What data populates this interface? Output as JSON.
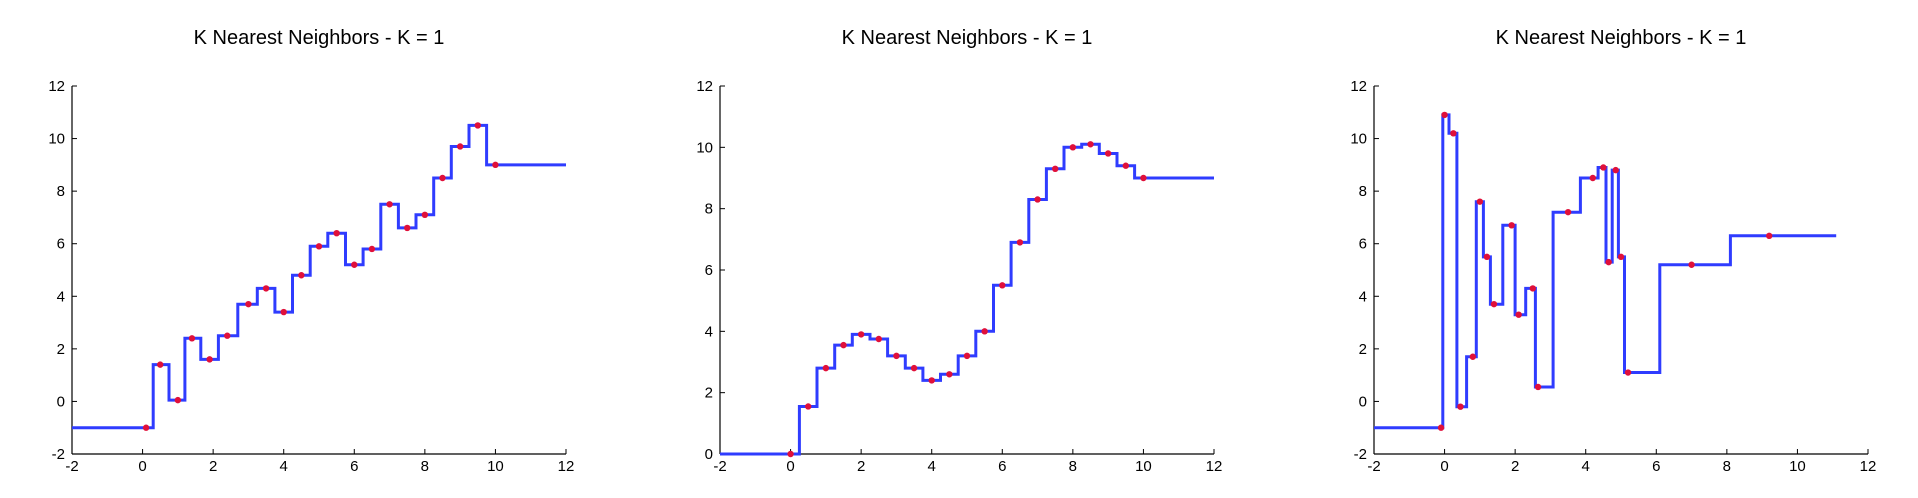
{
  "colors": {
    "line": "#2f3cff",
    "points": "#e0103a",
    "axis": "#000000"
  },
  "chart_data": [
    {
      "type": "line",
      "title": "K Nearest Neighbors - K = 1",
      "xlim": [
        -2,
        12
      ],
      "ylim": [
        -2,
        12
      ],
      "xticks": [
        -2,
        0,
        2,
        4,
        6,
        8,
        10,
        12
      ],
      "yticks": [
        -2,
        0,
        2,
        4,
        6,
        8,
        10,
        12
      ],
      "grid": false,
      "series": [
        {
          "kind": "knn-step",
          "x_range": [
            -2,
            12
          ],
          "x": [
            0.1,
            0.5,
            1.0,
            1.4,
            1.9,
            2.4,
            3.0,
            3.5,
            4.0,
            4.5,
            5.0,
            5.5,
            6.0,
            6.5,
            7.0,
            7.5,
            8.0,
            8.5,
            9.0,
            9.5,
            10.0
          ],
          "y": [
            -1.0,
            1.4,
            0.05,
            2.4,
            1.6,
            2.5,
            3.7,
            4.3,
            3.4,
            4.8,
            5.9,
            6.4,
            5.2,
            5.8,
            7.5,
            6.6,
            7.1,
            8.5,
            9.7,
            10.5,
            9.0
          ]
        }
      ]
    },
    {
      "type": "line",
      "title": "K Nearest Neighbors - K = 1",
      "xlim": [
        -2,
        12
      ],
      "ylim": [
        0,
        12
      ],
      "xticks": [
        -2,
        0,
        2,
        4,
        6,
        8,
        10,
        12
      ],
      "yticks": [
        0,
        2,
        4,
        6,
        8,
        10,
        12
      ],
      "grid": false,
      "series": [
        {
          "kind": "knn-step",
          "x_range": [
            -2,
            12
          ],
          "x": [
            0.0,
            0.5,
            1.0,
            1.5,
            2.0,
            2.5,
            3.0,
            3.5,
            4.0,
            4.5,
            5.0,
            5.5,
            6.0,
            6.5,
            7.0,
            7.5,
            8.0,
            8.5,
            9.0,
            9.5,
            10.0
          ],
          "y": [
            0.0,
            1.55,
            2.8,
            3.55,
            3.9,
            3.75,
            3.2,
            2.8,
            2.4,
            2.6,
            3.2,
            4.0,
            5.5,
            6.9,
            8.3,
            9.3,
            10.0,
            10.1,
            9.8,
            9.4,
            9.0
          ]
        }
      ]
    },
    {
      "type": "line",
      "title": "K Nearest Neighbors - K = 1",
      "xlim": [
        -2,
        12
      ],
      "ylim": [
        -2,
        12
      ],
      "xticks": [
        -2,
        0,
        2,
        4,
        6,
        8,
        10,
        12
      ],
      "yticks": [
        -2,
        0,
        2,
        4,
        6,
        8,
        10,
        12
      ],
      "grid": false,
      "series": [
        {
          "kind": "knn-step",
          "x_range": [
            -2,
            11.1
          ],
          "x": [
            -0.1,
            0.0,
            0.25,
            0.45,
            0.8,
            1.0,
            1.2,
            1.4,
            1.9,
            2.1,
            2.5,
            2.65,
            3.5,
            4.2,
            4.5,
            4.65,
            4.85,
            5.0,
            5.2,
            7.0,
            9.2
          ],
          "y": [
            -1.0,
            10.9,
            10.2,
            -0.2,
            1.7,
            7.6,
            5.5,
            3.7,
            6.7,
            3.3,
            4.3,
            0.55,
            7.2,
            8.5,
            8.9,
            5.3,
            8.8,
            5.5,
            1.1,
            5.2,
            6.3
          ]
        }
      ]
    }
  ]
}
